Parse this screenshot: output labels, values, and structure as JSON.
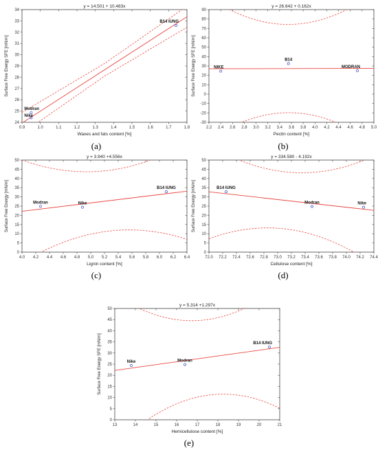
{
  "chart_data": [
    {
      "type": "scatter",
      "panel_label": "(a)",
      "title": "y = 14.501 + 10.483x",
      "xlabel": "Waxes and fats content [%]",
      "ylabel": "Surface Free Energy SFE [mN/m]",
      "xlim": [
        0.9,
        1.8
      ],
      "ylim": [
        24,
        34
      ],
      "xticks": [
        "0.9",
        "1.0",
        "1.1",
        "1.2",
        "1.3",
        "1.4",
        "1.5",
        "1.6",
        "1.7",
        "1.8"
      ],
      "yticks": [
        "24",
        "25",
        "26",
        "27",
        "28",
        "29",
        "30",
        "31",
        "32",
        "33",
        "34"
      ],
      "fit": {
        "intercept": 14.501,
        "slope": 10.483
      },
      "band_halfwidth": 0.75,
      "points": [
        {
          "name": "Modran",
          "x": 0.95,
          "y": 24.85
        },
        {
          "name": "Nike",
          "x": 0.95,
          "y": 24.4
        },
        {
          "name": "B14 IUNG",
          "x": 1.74,
          "y": 32.6
        }
      ]
    },
    {
      "type": "scatter",
      "panel_label": "(b)",
      "title": "y = 26.642 + 0.162x",
      "xlabel": "Pectin content [%]",
      "ylabel": "Surface Free Energy SFE [mN/m]",
      "xlim": [
        2.2,
        5.0
      ],
      "ylim": [
        -30,
        90
      ],
      "xticks": [
        "2.2",
        "2.4",
        "2.6",
        "2.8",
        "3.0",
        "3.2",
        "3.4",
        "3.6",
        "3.8",
        "4.0",
        "4.2",
        "4.4",
        "4.6",
        "4.8",
        "5.0"
      ],
      "yticks": [
        "-30",
        "-20",
        "-10",
        "0",
        "10",
        "20",
        "30",
        "40",
        "50",
        "60",
        "70",
        "80",
        "90"
      ],
      "fit": {
        "intercept": 26.642,
        "slope": 0.162
      },
      "band": {
        "center": 3.55,
        "min": 47,
        "k": 16
      },
      "points": [
        {
          "name": "NIKE",
          "x": 2.4,
          "y": 24.5
        },
        {
          "name": "B14",
          "x": 3.55,
          "y": 32.5
        },
        {
          "name": "MODRAN",
          "x": 4.72,
          "y": 25
        }
      ]
    },
    {
      "type": "scatter",
      "panel_label": "(c)",
      "title": "y = 3.940 +4.556x",
      "xlabel": "Lignin content [%]",
      "ylabel": "Surface Free Energy [mN/m]",
      "xlim": [
        4.0,
        6.4
      ],
      "ylim": [
        0,
        50
      ],
      "xticks": [
        "4.0",
        "4.2",
        "4.4",
        "4.6",
        "4.8",
        "5.0",
        "5.2",
        "5.4",
        "5.6",
        "5.8",
        "6.0",
        "6.2",
        "6.4"
      ],
      "yticks": [
        "0",
        "5",
        "10",
        "15",
        "20",
        "25",
        "30",
        "35",
        "40",
        "45",
        "50"
      ],
      "fit": {
        "intercept": 3.94,
        "slope": 4.556
      },
      "band": {
        "center": 5.25,
        "min": 16.5,
        "k": 7.3
      },
      "points": [
        {
          "name": "Modran",
          "x": 4.27,
          "y": 24.9
        },
        {
          "name": "Nike",
          "x": 4.88,
          "y": 24.4
        },
        {
          "name": "B14 IUNG",
          "x": 6.1,
          "y": 32.8
        }
      ]
    },
    {
      "type": "scatter",
      "panel_label": "(d)",
      "title": "y = 334.580 - 4.192x",
      "xlabel": "Cellulose content [%]",
      "ylabel": "Surface Free Energy [mN/m]",
      "xlim": [
        72.0,
        74.4
      ],
      "ylim": [
        0,
        50
      ],
      "xticks": [
        "72.0",
        "72.2",
        "72.4",
        "72.6",
        "72.8",
        "73.0",
        "73.2",
        "73.4",
        "73.6",
        "73.8",
        "74.0",
        "74.2",
        "74.4"
      ],
      "yticks": [
        "0",
        "5",
        "10",
        "15",
        "20",
        "25",
        "30",
        "35",
        "40",
        "45",
        "50"
      ],
      "fit": {
        "intercept": 334.58,
        "slope": -4.192
      },
      "band": {
        "center": 73.1,
        "min": 15.5,
        "k": 8.3
      },
      "points": [
        {
          "name": "B14 IUNG",
          "x": 72.25,
          "y": 32.8
        },
        {
          "name": "Modran",
          "x": 73.5,
          "y": 24.8
        },
        {
          "name": "Nike",
          "x": 74.25,
          "y": 24.4
        }
      ]
    },
    {
      "type": "scatter",
      "panel_label": "(e)",
      "title": "y = 5.314 +1.297x",
      "xlabel": "Hemicellulose content [%]",
      "ylabel": "Surface Free Energy SFE [mN/m]",
      "xlim": [
        13,
        21
      ],
      "ylim": [
        0,
        50
      ],
      "xticks": [
        "13",
        "14",
        "15",
        "16",
        "17",
        "18",
        "19",
        "20",
        "21"
      ],
      "yticks": [
        "0",
        "5",
        "10",
        "15",
        "20",
        "25",
        "30",
        "35",
        "40",
        "45",
        "50"
      ],
      "fit": {
        "intercept": 5.314,
        "slope": 1.297
      },
      "band": {
        "center": 17.5,
        "min": 17,
        "k": 0.85
      },
      "points": [
        {
          "name": "Nike",
          "x": 13.8,
          "y": 24.4
        },
        {
          "name": "Modran",
          "x": 16.4,
          "y": 24.8
        },
        {
          "name": "B14 IUNG",
          "x": 20.5,
          "y": 32.7
        }
      ]
    }
  ]
}
